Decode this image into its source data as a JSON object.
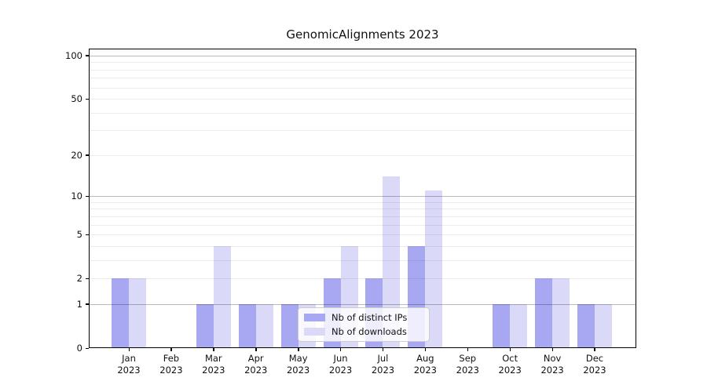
{
  "chart_data": {
    "type": "bar",
    "title": "GenomicAlignments 2023",
    "year": "2023",
    "categories": [
      "Jan 2023",
      "Feb 2023",
      "Mar 2023",
      "Apr 2023",
      "May 2023",
      "Jun 2023",
      "Jul 2023",
      "Aug 2023",
      "Sep 2023",
      "Oct 2023",
      "Nov 2023",
      "Dec 2023"
    ],
    "series": [
      {
        "name": "Nb of distinct IPs",
        "color": "#a8a8f2",
        "values": [
          2,
          0,
          1,
          1,
          1,
          2,
          2,
          4,
          0,
          1,
          2,
          1
        ]
      },
      {
        "name": "Nb of downloads",
        "color": "#dadaf8",
        "values": [
          2,
          0,
          4,
          1,
          1,
          4,
          14,
          11,
          0,
          1,
          2,
          1
        ]
      }
    ],
    "xlabel": "",
    "ylabel": "",
    "yscale": "log1p",
    "ylim": [
      0,
      110
    ],
    "ytick_values": [
      0,
      1,
      2,
      5,
      10,
      20,
      50,
      100
    ],
    "ytick_labels": [
      "0",
      "1",
      "2",
      "5",
      "10",
      "20",
      "50",
      "100"
    ],
    "grid": "horizontal; minor lines at 2-9 and 20-90 plus 5,50; major lines at 1, 10, 100",
    "legend_position": "inside lower-center"
  },
  "colors": {
    "bar_ips": "#a8a8f2",
    "bar_downloads": "#dadaf8",
    "minor_grid_over_white": "#ececec",
    "major_grid_over_white": "#bababa",
    "spine": "#000000",
    "text": "#111111",
    "legend_border": "#cccccc",
    "legend_background": "rgba(255,255,255,0.8)"
  }
}
